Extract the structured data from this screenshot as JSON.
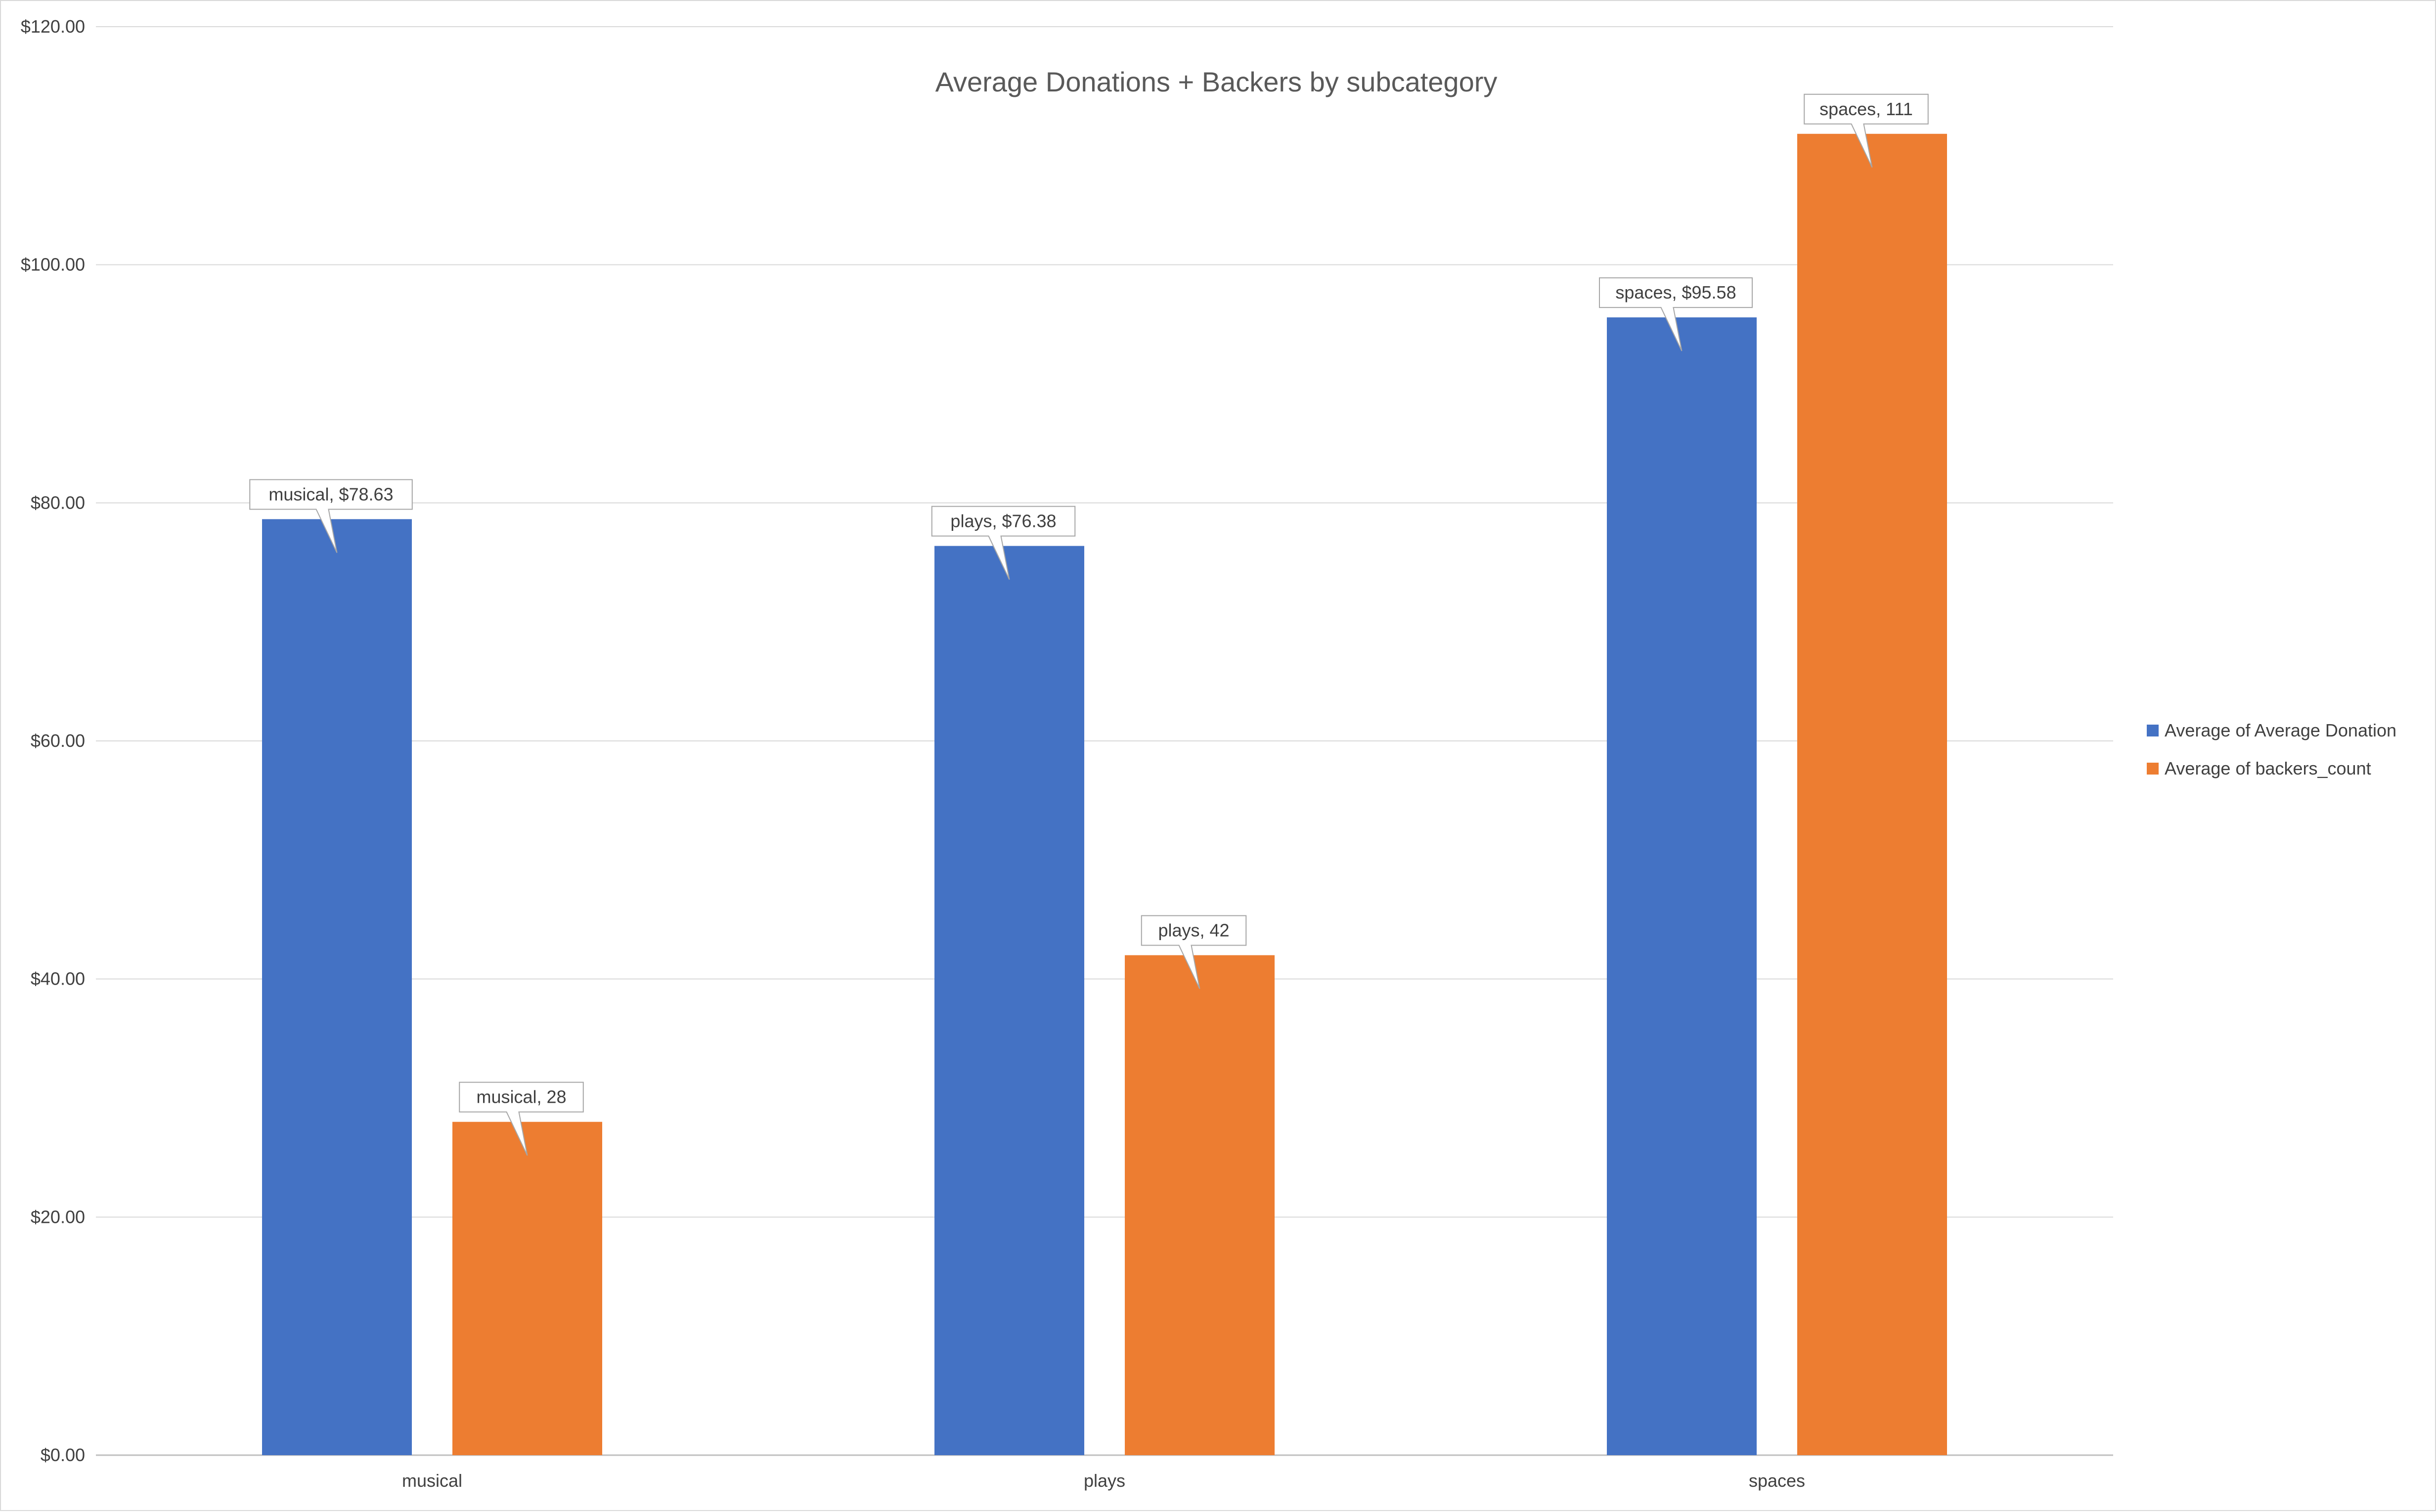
{
  "chart_data": {
    "type": "bar",
    "title": "Average Donations + Backers by subcategory",
    "xlabel": "",
    "ylabel": "",
    "categories": [
      "musical",
      "plays",
      "spaces"
    ],
    "series": [
      {
        "name": "Average of Average Donation",
        "color": "#4472C4",
        "values": [
          78.63,
          76.38,
          95.58
        ],
        "data_labels": [
          "musical, $78.63",
          "plays, $76.38",
          "spaces, $95.58"
        ]
      },
      {
        "name": "Average of backers_count",
        "color": "#ED7D31",
        "values": [
          28,
          42,
          111
        ],
        "data_labels": [
          "musical, 28",
          "plays, 42",
          "spaces, 111"
        ]
      }
    ],
    "y_ticks": [
      0,
      20,
      40,
      60,
      80,
      100,
      120
    ],
    "y_tick_labels": [
      "$0.00",
      "$20.00",
      "$40.00",
      "$60.00",
      "$80.00",
      "$100.00",
      "$120.00"
    ],
    "ylim": [
      0,
      120
    ],
    "grid": true,
    "legend_position": "right",
    "gridline_color": "#d9d9d9",
    "axis_line_color": "#bfbfbf"
  }
}
